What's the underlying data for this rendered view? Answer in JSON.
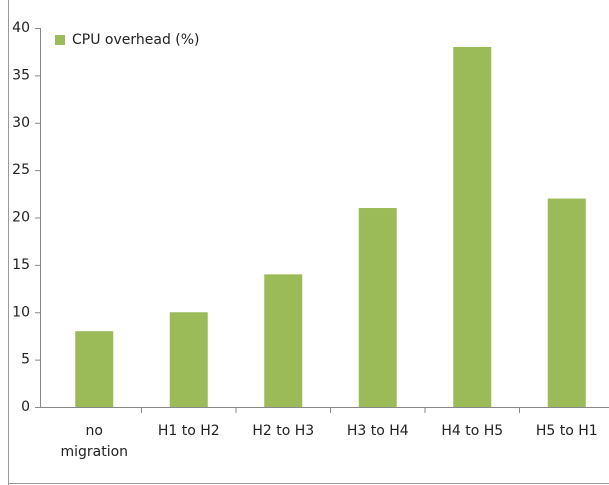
{
  "chart_data": {
    "type": "bar",
    "categories": [
      "no migration",
      "H1 to H2",
      "H2 to H3",
      "H3 to H4",
      "H4 to H5",
      "H5 to H1"
    ],
    "series": [
      {
        "name": "CPU overhead (%)",
        "color": "#9bbb59",
        "values": [
          8,
          10,
          14,
          21,
          38,
          22
        ]
      }
    ],
    "ylim": [
      0,
      40
    ],
    "yticks": [
      0,
      5,
      10,
      15,
      20,
      25,
      30,
      35,
      40
    ],
    "legend": "top-left"
  }
}
